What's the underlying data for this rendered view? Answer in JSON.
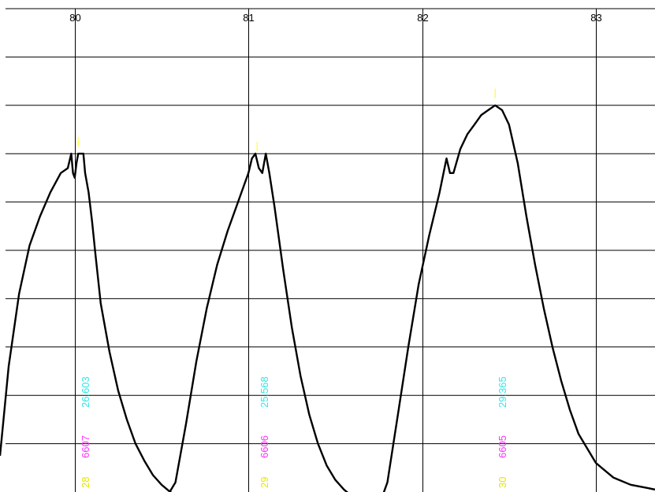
{
  "chart_data": {
    "type": "line",
    "title": "",
    "xlabel": "",
    "ylabel": "",
    "xlim": [
      79.57,
      83.34
    ],
    "ylim": [
      0,
      10
    ],
    "x_ticks": [
      {
        "value": 80,
        "label": "80"
      },
      {
        "value": 81,
        "label": "81"
      },
      {
        "value": 82,
        "label": "82"
      },
      {
        "value": 83,
        "label": "83"
      }
    ],
    "y_gridlines": [
      0,
      1,
      2,
      3,
      4,
      5,
      6,
      7,
      8,
      9
    ],
    "grid": true,
    "line_color": "#000000",
    "series": [
      {
        "x": [
          79.57,
          79.62,
          79.68,
          79.74,
          79.8,
          79.86,
          79.92,
          79.96,
          79.98,
          79.99,
          80.0,
          80.01,
          80.02,
          80.04,
          80.05,
          80.06,
          80.08,
          80.1,
          80.12,
          80.15,
          80.2,
          80.25,
          80.3,
          80.35,
          80.4,
          80.45,
          80.5,
          80.55,
          80.6
        ],
        "y": [
          0.75,
          2.6,
          4.1,
          5.1,
          5.7,
          6.2,
          6.6,
          6.7,
          7.0,
          6.6,
          6.5,
          6.8,
          7.0,
          7.0,
          7.0,
          6.6,
          6.2,
          5.6,
          4.9,
          3.9,
          2.9,
          2.1,
          1.5,
          1.0,
          0.65,
          0.35,
          0.15,
          0.0,
          -0.1
        ]
      },
      {
        "x": [
          80.53,
          80.58,
          80.64,
          80.7,
          80.76,
          80.82,
          80.88,
          80.94,
          80.98,
          81.0,
          81.02,
          81.04,
          81.06,
          81.08,
          81.1,
          81.12,
          81.15,
          81.2,
          81.25,
          81.3,
          81.35,
          81.4,
          81.45,
          81.5,
          81.55,
          81.6,
          81.65
        ],
        "y": [
          -0.1,
          0.2,
          1.4,
          2.7,
          3.8,
          4.7,
          5.4,
          6.0,
          6.4,
          6.6,
          6.9,
          7.0,
          6.7,
          6.6,
          7.0,
          6.6,
          5.9,
          4.6,
          3.4,
          2.4,
          1.6,
          1.0,
          0.55,
          0.25,
          0.05,
          -0.1,
          -0.2
        ]
      },
      {
        "x": [
          81.75,
          81.8,
          81.86,
          81.92,
          81.98,
          82.04,
          82.1,
          82.14,
          82.16,
          82.18,
          82.22,
          82.26,
          82.3,
          82.34,
          82.38,
          82.42,
          82.46,
          82.5,
          82.55,
          82.6,
          82.65,
          82.7,
          82.75,
          82.8,
          82.85,
          82.9,
          83.0,
          83.1,
          83.2,
          83.3,
          83.34
        ],
        "y": [
          -0.3,
          0.2,
          1.6,
          3.0,
          4.3,
          5.3,
          6.2,
          6.9,
          6.6,
          6.6,
          7.1,
          7.4,
          7.6,
          7.8,
          7.9,
          8.0,
          7.9,
          7.6,
          6.8,
          5.7,
          4.7,
          3.8,
          3.0,
          2.3,
          1.7,
          1.2,
          0.6,
          0.3,
          0.15,
          0.08,
          0.05
        ]
      }
    ],
    "peaks": [
      {
        "x": 80.02,
        "marker_y": 7.15,
        "label_x": 80.06,
        "value_cyan": "26.603",
        "value_magenta": "6607",
        "value_yellow": "28"
      },
      {
        "x": 81.05,
        "marker_y": 7.05,
        "label_x": 81.09,
        "value_cyan": "25.568",
        "value_magenta": "6606",
        "value_yellow": "29"
      },
      {
        "x": 82.42,
        "marker_y": 8.15,
        "label_x": 82.46,
        "value_cyan": "29.365",
        "value_magenta": "6605",
        "value_yellow": "30"
      }
    ],
    "colors": {
      "grid": "#000000",
      "peak_marker": "#ffff00",
      "label_cyan": "#33e6e6",
      "label_magenta": "#ff33ff",
      "label_yellow": "#e6e600"
    }
  }
}
